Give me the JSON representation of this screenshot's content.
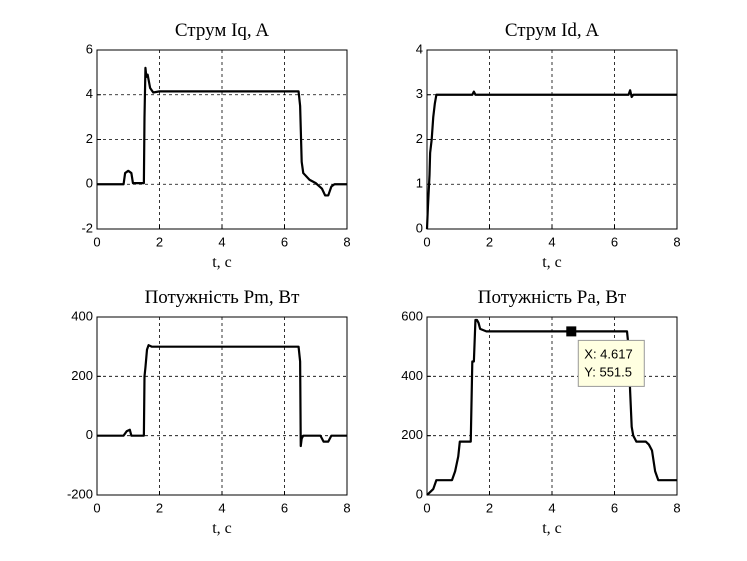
{
  "chart_data": [
    {
      "type": "line",
      "title": "Струм Iq, A",
      "xlabel": "t, c",
      "x": [
        0,
        0.85,
        0.9,
        1.0,
        1.1,
        1.15,
        1.5,
        1.52,
        1.55,
        1.58,
        1.62,
        1.7,
        1.8,
        2.0,
        6.45,
        6.5,
        6.55,
        6.6,
        6.8,
        7.0,
        7.2,
        7.3,
        7.4,
        7.5,
        7.6,
        8
      ],
      "values": [
        0,
        0,
        0.5,
        0.6,
        0.5,
        0.05,
        0.05,
        3,
        5.2,
        4.8,
        4.9,
        4.3,
        4.1,
        4.15,
        4.15,
        3.5,
        1.0,
        0.5,
        0.2,
        0.05,
        -0.2,
        -0.5,
        -0.5,
        -0.1,
        0,
        0
      ],
      "color": "#000000",
      "xlim": [
        0,
        8
      ],
      "xticks": [
        0,
        2,
        4,
        6,
        8
      ],
      "ylim": [
        -2,
        6
      ],
      "yticks": [
        -2,
        0,
        2,
        4,
        6
      ],
      "grid": true
    },
    {
      "type": "line",
      "title": "Струм Id, A",
      "xlabel": "t, c",
      "x": [
        0,
        0.03,
        0.08,
        0.1,
        0.15,
        0.2,
        0.25,
        0.3,
        1.45,
        1.5,
        1.55,
        6.45,
        6.5,
        6.55,
        6.6,
        8
      ],
      "values": [
        0,
        0.5,
        1.2,
        1.7,
        2.0,
        2.5,
        2.8,
        3.0,
        3.0,
        3.07,
        3.0,
        3.0,
        3.1,
        2.95,
        3.0,
        3.0
      ],
      "color": "#000000",
      "xlim": [
        0,
        8
      ],
      "xticks": [
        0,
        2,
        4,
        6,
        8
      ],
      "ylim": [
        0,
        4
      ],
      "yticks": [
        0,
        1,
        2,
        3,
        4
      ],
      "grid": true
    },
    {
      "type": "line",
      "title": "Потужність Pm, Вт",
      "xlabel": "t, c",
      "x": [
        0,
        0.85,
        0.95,
        1.05,
        1.1,
        1.5,
        1.52,
        1.55,
        1.6,
        1.65,
        1.75,
        6.45,
        6.5,
        6.52,
        6.55,
        6.6,
        7.0,
        7.15,
        7.25,
        7.4,
        7.5,
        8
      ],
      "values": [
        0,
        0,
        15,
        20,
        0,
        0,
        200,
        230,
        290,
        305,
        300,
        300,
        250,
        -35,
        -10,
        0,
        0,
        0,
        -20,
        -20,
        0,
        0
      ],
      "color": "#000000",
      "xlim": [
        0,
        8
      ],
      "xticks": [
        0,
        2,
        4,
        6,
        8
      ],
      "ylim": [
        -200,
        400
      ],
      "yticks": [
        -200,
        0,
        200,
        400
      ],
      "grid": true
    },
    {
      "type": "line",
      "title": "Потужність Pa, Вт",
      "xlabel": "t, c",
      "x": [
        0,
        0.1,
        0.2,
        0.3,
        0.5,
        0.8,
        0.9,
        1.0,
        1.05,
        1.1,
        1.4,
        1.45,
        1.5,
        1.55,
        1.6,
        1.65,
        1.7,
        1.9,
        6.4,
        6.45,
        6.5,
        6.55,
        6.6,
        6.7,
        6.9,
        7.0,
        7.1,
        7.2,
        7.3,
        7.4,
        8
      ],
      "values": [
        0,
        10,
        20,
        50,
        50,
        50,
        80,
        130,
        180,
        180,
        180,
        450,
        450,
        590,
        590,
        580,
        560,
        551.5,
        551.5,
        500,
        350,
        230,
        200,
        180,
        180,
        180,
        170,
        150,
        80,
        50,
        50
      ],
      "color": "#000000",
      "xlim": [
        0,
        8
      ],
      "xticks": [
        0,
        2,
        4,
        6,
        8
      ],
      "ylim": [
        0,
        600
      ],
      "yticks": [
        0,
        200,
        400,
        600
      ],
      "grid": true,
      "annotations": [
        {
          "x": 4.617,
          "y": 551.5,
          "x_text": "X: 4.617",
          "y_text": "Y: 551.5"
        }
      ]
    }
  ]
}
